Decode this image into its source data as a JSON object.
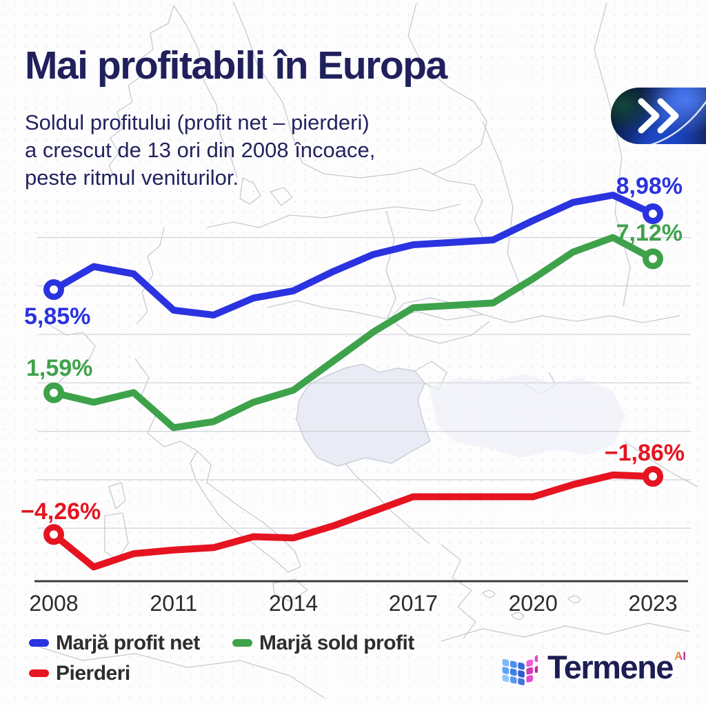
{
  "header": {
    "title": "Mai profitabili în Europa",
    "subtitle_lines": [
      "Soldul profitului (profit net – pierderi)",
      "a crescut de 13 ori din 2008 încoace,",
      "peste ritmul veniturilor."
    ]
  },
  "badge": {
    "icon": "fast-forward-chevrons"
  },
  "chart_data": {
    "type": "line",
    "title": "Mai profitabili în Europa",
    "xlabel": "",
    "ylabel": "",
    "unit": "%",
    "grid": true,
    "gridlines_percent": [
      8,
      6,
      4,
      2,
      0,
      -2,
      -4
    ],
    "ylim": [
      -6.2,
      10.6
    ],
    "x": [
      2008,
      2009,
      2010,
      2011,
      2012,
      2013,
      2014,
      2015,
      2016,
      2017,
      2018,
      2019,
      2020,
      2021,
      2022,
      2023
    ],
    "x_ticks": [
      "2008",
      "2011",
      "2014",
      "2017",
      "2020",
      "2023"
    ],
    "legend_position": "bottom-left",
    "series": [
      {
        "id": "marja-profit-net",
        "name": "Marjă profit net",
        "color": "#2a33df",
        "values": [
          5.85,
          6.8,
          6.5,
          5.0,
          4.8,
          5.5,
          5.8,
          6.6,
          7.3,
          7.7,
          7.8,
          7.9,
          8.7,
          9.45,
          9.75,
          8.98
        ],
        "endpoint_labels": {
          "first": {
            "text": "5,85%",
            "x": 35,
            "y": 470,
            "anchor": "start"
          },
          "last": {
            "text": "8,98%",
            "x": 990,
            "y": 281,
            "anchor": "end"
          }
        }
      },
      {
        "id": "marja-sold-profit",
        "name": "Marjă sold profit",
        "color": "#3ea24b",
        "values": [
          1.59,
          1.2,
          1.6,
          0.15,
          0.4,
          1.2,
          1.7,
          2.9,
          4.1,
          5.1,
          5.2,
          5.3,
          6.3,
          7.4,
          8.0,
          7.12
        ],
        "endpoint_labels": {
          "first": {
            "text": "1,59%",
            "x": 38,
            "y": 545,
            "anchor": "start"
          },
          "last": {
            "text": "7,12%",
            "x": 990,
            "y": 349,
            "anchor": "end"
          }
        }
      },
      {
        "id": "pierderi",
        "name": "Pierderi",
        "color": "#e51420",
        "values": [
          -4.26,
          -5.6,
          -5.05,
          -4.9,
          -4.8,
          -4.35,
          -4.4,
          -3.9,
          -3.3,
          -2.7,
          -2.7,
          -2.7,
          -2.7,
          -2.2,
          -1.8,
          -1.86
        ],
        "endpoint_labels": {
          "first": {
            "text": "−4,26%",
            "x": 30,
            "y": 753,
            "anchor": "start"
          },
          "last": {
            "text": "−1,86%",
            "x": 993,
            "y": 668,
            "anchor": "end"
          }
        }
      }
    ]
  },
  "logo": {
    "brand": "Termene",
    "superscript": "AI"
  },
  "colors": {
    "navy": "#20205c",
    "axis": "#3b3b3b",
    "tick_text": "#2b2b2b",
    "grid": "#c9cbd2",
    "map_line": "#c5c7ce",
    "map_highlight": "#e9ecf4",
    "sea_fill": "#eceff7"
  }
}
